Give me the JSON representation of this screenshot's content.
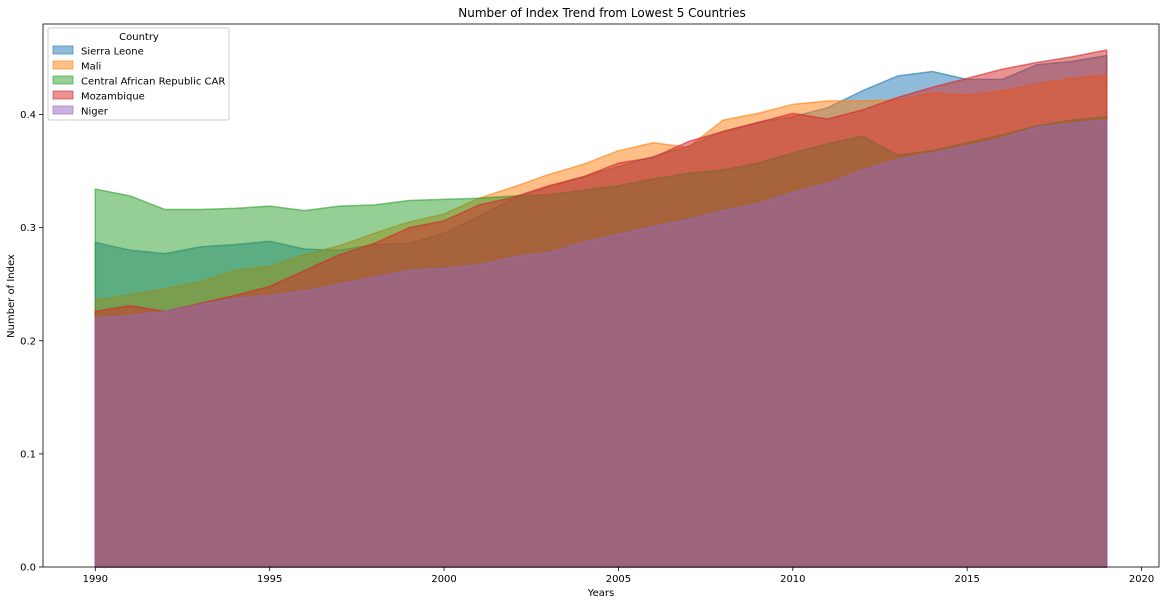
{
  "chart_data": {
    "type": "area",
    "title": "Number of Index Trend from Lowest 5 Countries",
    "xlabel": "Years",
    "ylabel": "Number of Index",
    "xlim": [
      1988.5,
      2020.5
    ],
    "ylim": [
      0,
      0.48
    ],
    "xticks": [
      1990,
      1995,
      2000,
      2005,
      2010,
      2015,
      2020
    ],
    "yticks": [
      0.0,
      0.1,
      0.2,
      0.3,
      0.4
    ],
    "grid": false,
    "stacked": false,
    "legend": {
      "title": "Country",
      "placement": "top-left"
    },
    "x": [
      1990,
      1991,
      1992,
      1993,
      1994,
      1995,
      1996,
      1997,
      1998,
      1999,
      2000,
      2001,
      2002,
      2003,
      2004,
      2005,
      2006,
      2007,
      2008,
      2009,
      2010,
      2011,
      2012,
      2013,
      2014,
      2015,
      2016,
      2017,
      2018,
      2019
    ],
    "series": [
      {
        "name": "Sierra Leone",
        "color": "#1f77b4",
        "values": [
          0.287,
          0.28,
          0.277,
          0.283,
          0.285,
          0.288,
          0.281,
          0.28,
          0.285,
          0.286,
          0.295,
          0.31,
          0.326,
          0.336,
          0.345,
          0.354,
          0.363,
          0.372,
          0.385,
          0.393,
          0.398,
          0.406,
          0.421,
          0.434,
          0.438,
          0.431,
          0.431,
          0.444,
          0.447,
          0.452
        ]
      },
      {
        "name": "Mali",
        "color": "#ff7f0e",
        "values": [
          0.236,
          0.241,
          0.246,
          0.252,
          0.262,
          0.266,
          0.276,
          0.284,
          0.295,
          0.305,
          0.312,
          0.326,
          0.336,
          0.347,
          0.356,
          0.368,
          0.375,
          0.371,
          0.395,
          0.401,
          0.409,
          0.412,
          0.412,
          0.413,
          0.419,
          0.417,
          0.421,
          0.427,
          0.432,
          0.435
        ]
      },
      {
        "name": "Central African Republic CAR",
        "color": "#2ca02c",
        "values": [
          0.334,
          0.328,
          0.316,
          0.316,
          0.317,
          0.319,
          0.315,
          0.319,
          0.32,
          0.324,
          0.325,
          0.326,
          0.328,
          0.329,
          0.333,
          0.337,
          0.343,
          0.348,
          0.351,
          0.357,
          0.366,
          0.374,
          0.381,
          0.364,
          0.368,
          0.375,
          0.382,
          0.39,
          0.395,
          0.398
        ]
      },
      {
        "name": "Mozambique",
        "color": "#d62728",
        "values": [
          0.226,
          0.231,
          0.226,
          0.233,
          0.24,
          0.248,
          0.262,
          0.276,
          0.286,
          0.3,
          0.306,
          0.32,
          0.327,
          0.337,
          0.345,
          0.357,
          0.362,
          0.376,
          0.385,
          0.393,
          0.401,
          0.396,
          0.404,
          0.415,
          0.424,
          0.432,
          0.44,
          0.446,
          0.451,
          0.457
        ]
      },
      {
        "name": "Niger",
        "color": "#9467bd",
        "values": [
          0.22,
          0.222,
          0.226,
          0.232,
          0.237,
          0.24,
          0.244,
          0.25,
          0.256,
          0.262,
          0.264,
          0.267,
          0.274,
          0.278,
          0.287,
          0.294,
          0.301,
          0.307,
          0.315,
          0.321,
          0.331,
          0.339,
          0.351,
          0.36,
          0.366,
          0.372,
          0.379,
          0.389,
          0.392,
          0.395
        ]
      }
    ]
  }
}
